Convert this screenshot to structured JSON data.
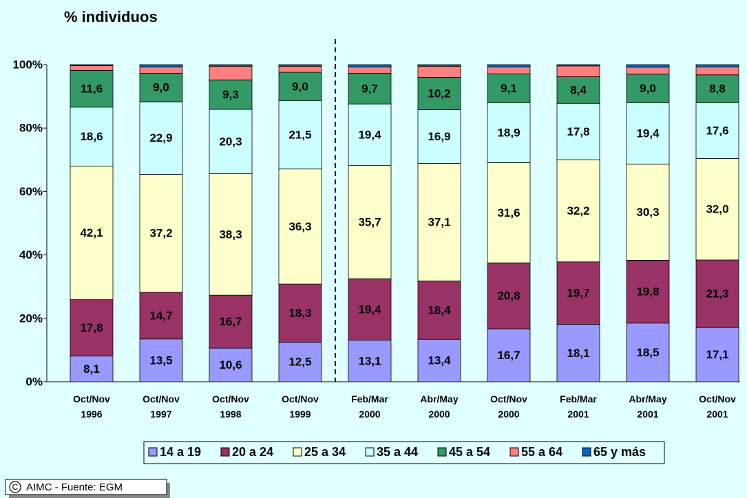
{
  "chart_data": {
    "type": "stacked_bar_100",
    "title": "% individuos",
    "categories": [
      "Oct/Nov 1996",
      "Oct/Nov 1997",
      "Oct/Nov 1998",
      "Oct/Nov 1999",
      "Feb/Mar 2000",
      "Abr/May 2000",
      "Oct/Nov 2000",
      "Feb/Mar 2001",
      "Abr/May 2001",
      "Oct/Nov 2001"
    ],
    "series": [
      {
        "name": "14 a 19",
        "color": "#9999ff",
        "values": [
          8.1,
          13.5,
          10.6,
          12.5,
          13.1,
          13.4,
          16.7,
          18.1,
          18.5,
          17.1
        ],
        "value_labels": [
          "8,1",
          "13,5",
          "10,6",
          "12,5",
          "13,1",
          "13,4",
          "16,7",
          "18,1",
          "18,5",
          "17,1"
        ]
      },
      {
        "name": "20 a 24",
        "color": "#993366",
        "values": [
          17.8,
          14.7,
          16.7,
          18.3,
          19.4,
          18.4,
          20.8,
          19.7,
          19.8,
          21.3
        ],
        "value_labels": [
          "17,8",
          "14,7",
          "16,7",
          "18,3",
          "19,4",
          "18,4",
          "20,8",
          "19,7",
          "19,8",
          "21,3"
        ]
      },
      {
        "name": "25 a 34",
        "color": "#ffffcc",
        "values": [
          42.1,
          37.2,
          38.3,
          36.3,
          35.7,
          37.1,
          31.6,
          32.2,
          30.3,
          32.0
        ],
        "value_labels": [
          "42,1",
          "37,2",
          "38,3",
          "36,3",
          "35,7",
          "37,1",
          "31,6",
          "32,2",
          "30,3",
          "32,0"
        ]
      },
      {
        "name": "35 a 44",
        "color": "#ccffff",
        "values": [
          18.6,
          22.9,
          20.3,
          21.5,
          19.4,
          16.9,
          18.9,
          17.8,
          19.4,
          17.6
        ],
        "value_labels": [
          "18,6",
          "22,9",
          "20,3",
          "21,5",
          "19,4",
          "16,9",
          "18,9",
          "17,8",
          "19,4",
          "17,6"
        ]
      },
      {
        "name": "45 a 54",
        "color": "#339966",
        "values": [
          11.6,
          9.0,
          9.3,
          9.0,
          9.7,
          10.2,
          9.1,
          8.4,
          9.0,
          8.8
        ],
        "value_labels": [
          "11,6",
          "9,0",
          "9,3",
          "9,0",
          "9,7",
          "10,2",
          "9,1",
          "8,4",
          "9,0",
          "8,8"
        ]
      },
      {
        "name": "55 a 64",
        "color": "#ff8080",
        "values": [
          1.5,
          2.0,
          4.3,
          1.9,
          2.0,
          3.5,
          2.2,
          3.4,
          2.2,
          2.5
        ]
      },
      {
        "name": "65 y más",
        "color": "#0066cc",
        "values": [
          0.3,
          0.7,
          0.5,
          0.5,
          0.7,
          0.5,
          0.7,
          0.4,
          0.8,
          0.7
        ]
      }
    ],
    "ylim": [
      0,
      100
    ],
    "yticks": [
      {
        "value": 0,
        "label": "0%"
      },
      {
        "value": 20,
        "label": "20%"
      },
      {
        "value": 40,
        "label": "40%"
      },
      {
        "value": 60,
        "label": "60%"
      },
      {
        "value": 80,
        "label": "80%"
      },
      {
        "value": 100,
        "label": "100%"
      }
    ],
    "source": "AIMC - Fuente: EGM"
  }
}
